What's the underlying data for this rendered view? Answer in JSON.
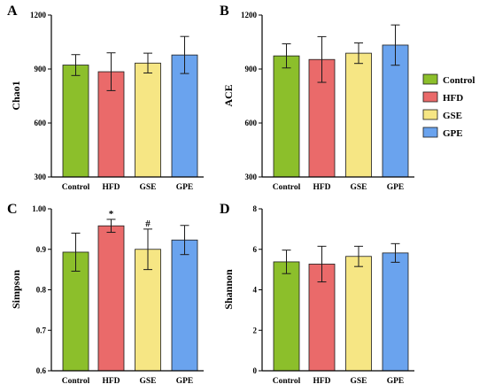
{
  "legend": [
    {
      "label": "Control",
      "color": "#8cbf2b"
    },
    {
      "label": "HFD",
      "color": "#ea6a6a"
    },
    {
      "label": "GSE",
      "color": "#f6e684"
    },
    {
      "label": "GPE",
      "color": "#6aa3ee"
    }
  ],
  "chart_data": [
    {
      "panel": "A",
      "type": "bar",
      "ylabel": "Chao1",
      "categories": [
        "Control",
        "HFD",
        "GSE",
        "GPE"
      ],
      "values": [
        922,
        885,
        933,
        978
      ],
      "errors": [
        58,
        105,
        55,
        103
      ],
      "ylim": [
        300,
        1200
      ],
      "yticks": [
        300,
        600,
        900,
        1200
      ],
      "tick_labels": [
        "300",
        "600",
        "900",
        "1200"
      ],
      "annotations": [
        "",
        "",
        "",
        ""
      ]
    },
    {
      "panel": "B",
      "type": "bar",
      "ylabel": "ACE",
      "categories": [
        "Control",
        "HFD",
        "GSE",
        "GPE"
      ],
      "values": [
        973,
        953,
        988,
        1033
      ],
      "errors": [
        67,
        127,
        57,
        112
      ],
      "ylim": [
        300,
        1200
      ],
      "yticks": [
        300,
        600,
        900,
        1200
      ],
      "tick_labels": [
        "300",
        "600",
        "900",
        "1200"
      ],
      "annotations": [
        "",
        "",
        "",
        ""
      ]
    },
    {
      "panel": "C",
      "type": "bar",
      "ylabel": "Simpson",
      "categories": [
        "Control",
        "HFD",
        "GSE",
        "GPE"
      ],
      "values": [
        0.893,
        0.958,
        0.9,
        0.923
      ],
      "errors": [
        0.047,
        0.016,
        0.05,
        0.036
      ],
      "ylim": [
        0.6,
        1.0
      ],
      "yticks": [
        0.6,
        0.7,
        0.8,
        0.9,
        1.0
      ],
      "tick_labels": [
        "0.6",
        "0.7",
        "0.8",
        "0.9",
        "1.00"
      ],
      "annotations": [
        "",
        "*",
        "#",
        ""
      ]
    },
    {
      "panel": "D",
      "type": "bar",
      "ylabel": "Shannon",
      "categories": [
        "Control",
        "HFD",
        "GSE",
        "GPE"
      ],
      "values": [
        5.38,
        5.27,
        5.65,
        5.82
      ],
      "errors": [
        0.58,
        0.88,
        0.5,
        0.46
      ],
      "ylim": [
        0,
        8
      ],
      "yticks": [
        0,
        2,
        4,
        6,
        8
      ],
      "tick_labels": [
        "0",
        "2",
        "4",
        "6",
        "8"
      ],
      "annotations": [
        "",
        "",
        "",
        ""
      ]
    }
  ]
}
